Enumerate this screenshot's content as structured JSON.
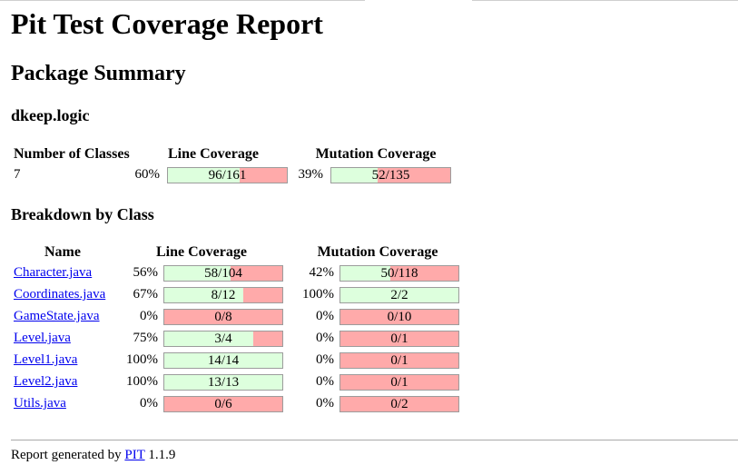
{
  "report": {
    "title": "Pit Test Coverage Report",
    "package_summary_heading": "Package Summary",
    "package_name": "dkeep.logic"
  },
  "summary": {
    "headers": {
      "classes": "Number of Classes",
      "line": "Line Coverage",
      "mutation": "Mutation Coverage"
    },
    "row": {
      "classes": "7",
      "line_pct": "60%",
      "line_text": "96/161",
      "line_fraction": 0.6,
      "mut_pct": "39%",
      "mut_text": "52/135",
      "mut_fraction": 0.39
    }
  },
  "breakdown": {
    "heading": "Breakdown by Class",
    "headers": {
      "name": "Name",
      "line": "Line Coverage",
      "mutation": "Mutation Coverage"
    },
    "rows": [
      {
        "name": "Character.java",
        "line_pct": "56%",
        "line_text": "58/104",
        "line_fraction": 0.56,
        "mut_pct": "42%",
        "mut_text": "50/118",
        "mut_fraction": 0.42
      },
      {
        "name": "Coordinates.java",
        "line_pct": "67%",
        "line_text": "8/12",
        "line_fraction": 0.67,
        "mut_pct": "100%",
        "mut_text": "2/2",
        "mut_fraction": 1.0
      },
      {
        "name": "GameState.java",
        "line_pct": "0%",
        "line_text": "0/8",
        "line_fraction": 0.0,
        "mut_pct": "0%",
        "mut_text": "0/10",
        "mut_fraction": 0.0
      },
      {
        "name": "Level.java",
        "line_pct": "75%",
        "line_text": "3/4",
        "line_fraction": 0.75,
        "mut_pct": "0%",
        "mut_text": "0/1",
        "mut_fraction": 0.0
      },
      {
        "name": "Level1.java",
        "line_pct": "100%",
        "line_text": "14/14",
        "line_fraction": 1.0,
        "mut_pct": "0%",
        "mut_text": "0/1",
        "mut_fraction": 0.0
      },
      {
        "name": "Level2.java",
        "line_pct": "100%",
        "line_text": "13/13",
        "line_fraction": 1.0,
        "mut_pct": "0%",
        "mut_text": "0/1",
        "mut_fraction": 0.0
      },
      {
        "name": "Utils.java",
        "line_pct": "0%",
        "line_text": "0/6",
        "line_fraction": 0.0,
        "mut_pct": "0%",
        "mut_text": "0/2",
        "mut_fraction": 0.0
      }
    ]
  },
  "footer": {
    "prefix": "Report generated by",
    "link": "PIT",
    "version": "1.1.9"
  },
  "colors": {
    "covered": "#ddffdd",
    "uncovered": "#ffaaaa",
    "link": "#0000ee"
  }
}
